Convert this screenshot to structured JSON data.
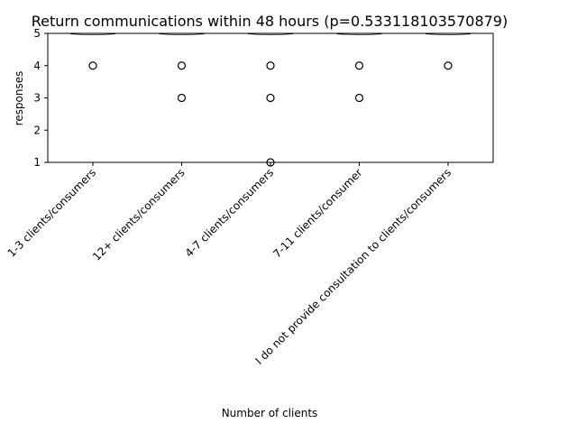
{
  "chart_data": {
    "type": "scatter",
    "title": "Return communications within 48 hours (p=0.533118103570879)",
    "xlabel": "Number of clients",
    "ylabel": "responses",
    "ylim": [
      1,
      5
    ],
    "yticks": [
      1,
      2,
      3,
      4,
      5
    ],
    "categories": [
      "1-3 clients/consumers",
      "12+ clients/consumers",
      "4-7 clients/consumers",
      "7-11 clients/consumer",
      "I do not provide consultation to clients/consumers"
    ],
    "series": [
      {
        "points": [
          {
            "category": 0,
            "values": [
              4
            ]
          },
          {
            "category": 1,
            "values": [
              4,
              3
            ]
          },
          {
            "category": 2,
            "values": [
              4,
              3,
              1
            ]
          },
          {
            "category": 3,
            "values": [
              4,
              3
            ]
          },
          {
            "category": 4,
            "values": [
              4
            ]
          }
        ]
      }
    ],
    "marker": "open-circle",
    "violin_tops_at": 5,
    "grid": false,
    "legend": "none"
  }
}
